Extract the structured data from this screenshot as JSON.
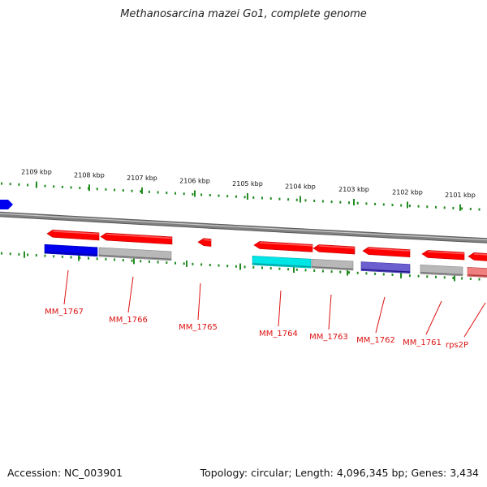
{
  "title": "Methanosarcina mazei Go1, complete genome",
  "footer": {
    "accession": "Accession: NC_003901",
    "summary": "Topology: circular; Length: 4,096,345 bp; Genes: 3,434"
  },
  "ruler": {
    "labels": [
      "2109 kbp",
      "2108 kbp",
      "2107 kbp",
      "2106 kbp",
      "2105 kbp",
      "2104 kbp",
      "2103 kbp",
      "2102 kbp",
      "2101 kbp"
    ]
  },
  "colors": {
    "backbone": "#808080",
    "tick": "#228B22",
    "gene_label": "#dd1111",
    "gene_red": "#ff0000",
    "protein_blue": "#0000ee",
    "protein_gray": "#b8b8b8",
    "protein_cyan": "#00e5e5",
    "protein_purple": "#6b5fd0",
    "protein_pink": "#f08080"
  },
  "genes": [
    {
      "id": "partial-left-gene",
      "label": "",
      "color": "protein_blue"
    },
    {
      "id": "MM_1767",
      "label": "MM_1767",
      "protein_color": "protein_blue"
    },
    {
      "id": "MM_1766",
      "label": "MM_1766",
      "protein_color": "protein_gray"
    },
    {
      "id": "MM_1765",
      "label": "MM_1765",
      "protein_color": ""
    },
    {
      "id": "MM_1764",
      "label": "MM_1764",
      "protein_color": "protein_cyan"
    },
    {
      "id": "MM_1763",
      "label": "MM_1763",
      "protein_color": "protein_gray"
    },
    {
      "id": "MM_1762",
      "label": "MM_1762",
      "protein_color": "protein_purple"
    },
    {
      "id": "MM_1761",
      "label": "MM_1761",
      "protein_color": "protein_gray"
    },
    {
      "id": "rps2P",
      "label": "rps2P",
      "protein_color": "protein_pink"
    }
  ]
}
